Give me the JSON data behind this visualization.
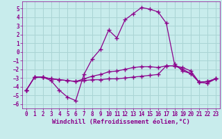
{
  "xlabel": "Windchill (Refroidissement éolien,°C)",
  "ylabel": "",
  "bg_color": "#c8ecec",
  "grid_color": "#aad4d4",
  "line_color": "#8b008b",
  "xlim": [
    -0.5,
    23.5
  ],
  "ylim": [
    -6.5,
    5.8
  ],
  "xticks": [
    0,
    1,
    2,
    3,
    4,
    5,
    6,
    7,
    8,
    9,
    10,
    11,
    12,
    13,
    14,
    15,
    16,
    17,
    18,
    19,
    20,
    21,
    22,
    23
  ],
  "yticks": [
    -6,
    -5,
    -4,
    -3,
    -2,
    -1,
    0,
    1,
    2,
    3,
    4,
    5
  ],
  "series1_x": [
    0,
    1,
    2,
    3,
    4,
    5,
    6,
    7,
    8,
    9,
    10,
    11,
    12,
    13,
    14,
    15,
    16,
    17,
    18,
    19,
    20,
    21,
    22,
    23
  ],
  "series1_y": [
    -4.4,
    -2.9,
    -2.9,
    -3.3,
    -4.4,
    -5.2,
    -5.6,
    -2.6,
    -0.8,
    0.3,
    2.5,
    1.6,
    3.7,
    4.4,
    5.1,
    4.9,
    4.6,
    3.3,
    -1.4,
    -2.2,
    -2.5,
    -3.5,
    -3.6,
    -3.1
  ],
  "series2_x": [
    0,
    1,
    2,
    3,
    4,
    5,
    6,
    7,
    8,
    9,
    10,
    11,
    12,
    13,
    14,
    15,
    16,
    17,
    18,
    19,
    20,
    21,
    22,
    23
  ],
  "series2_y": [
    -4.4,
    -2.9,
    -2.9,
    -3.1,
    -3.2,
    -3.3,
    -3.4,
    -3.3,
    -3.2,
    -3.2,
    -3.1,
    -3.1,
    -3.0,
    -2.9,
    -2.8,
    -2.7,
    -2.6,
    -1.6,
    -1.6,
    -1.8,
    -2.2,
    -3.5,
    -3.4,
    -3.1
  ],
  "series3_x": [
    0,
    1,
    2,
    3,
    4,
    5,
    6,
    7,
    8,
    9,
    10,
    11,
    12,
    13,
    14,
    15,
    16,
    17,
    18,
    19,
    20,
    21,
    22,
    23
  ],
  "series3_y": [
    -4.4,
    -2.9,
    -2.9,
    -3.1,
    -3.2,
    -3.3,
    -3.4,
    -3.1,
    -2.8,
    -2.6,
    -2.3,
    -2.2,
    -2.0,
    -1.8,
    -1.7,
    -1.7,
    -1.8,
    -1.6,
    -1.6,
    -2.0,
    -2.5,
    -3.5,
    -3.4,
    -3.1
  ],
  "marker": "+",
  "markersize": 4,
  "linewidth": 0.9,
  "xlabel_fontsize": 6.5,
  "tick_fontsize": 5.5
}
